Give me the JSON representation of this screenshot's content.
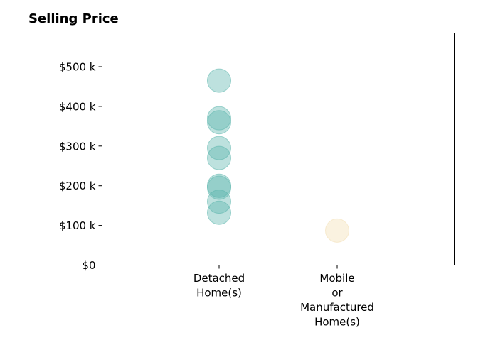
{
  "chart_data": {
    "type": "scatter",
    "title": "Selling Price",
    "xlabel": "",
    "ylabel": "",
    "ylim": [
      0,
      585000
    ],
    "grid": false,
    "y_ticks": [
      {
        "value": 0,
        "label": "$0"
      },
      {
        "value": 100000,
        "label": "$100 k"
      },
      {
        "value": 200000,
        "label": "$200 k"
      },
      {
        "value": 300000,
        "label": "$300 k"
      },
      {
        "value": 400000,
        "label": "$400 k"
      },
      {
        "value": 500000,
        "label": "$500 k"
      }
    ],
    "categories": [
      {
        "lines": [
          "Detached",
          "Home(s)"
        ]
      },
      {
        "lines": [
          "Mobile",
          "or",
          "Manufactured",
          "Home(s)"
        ]
      }
    ],
    "series": [
      {
        "category_index": 0,
        "color": "#5ab4ac",
        "values": [
          465000,
          370000,
          360000,
          295000,
          270000,
          200000,
          195000,
          160000,
          132000
        ]
      },
      {
        "category_index": 1,
        "color": "#f3dfb2",
        "values": [
          87000
        ]
      }
    ]
  }
}
